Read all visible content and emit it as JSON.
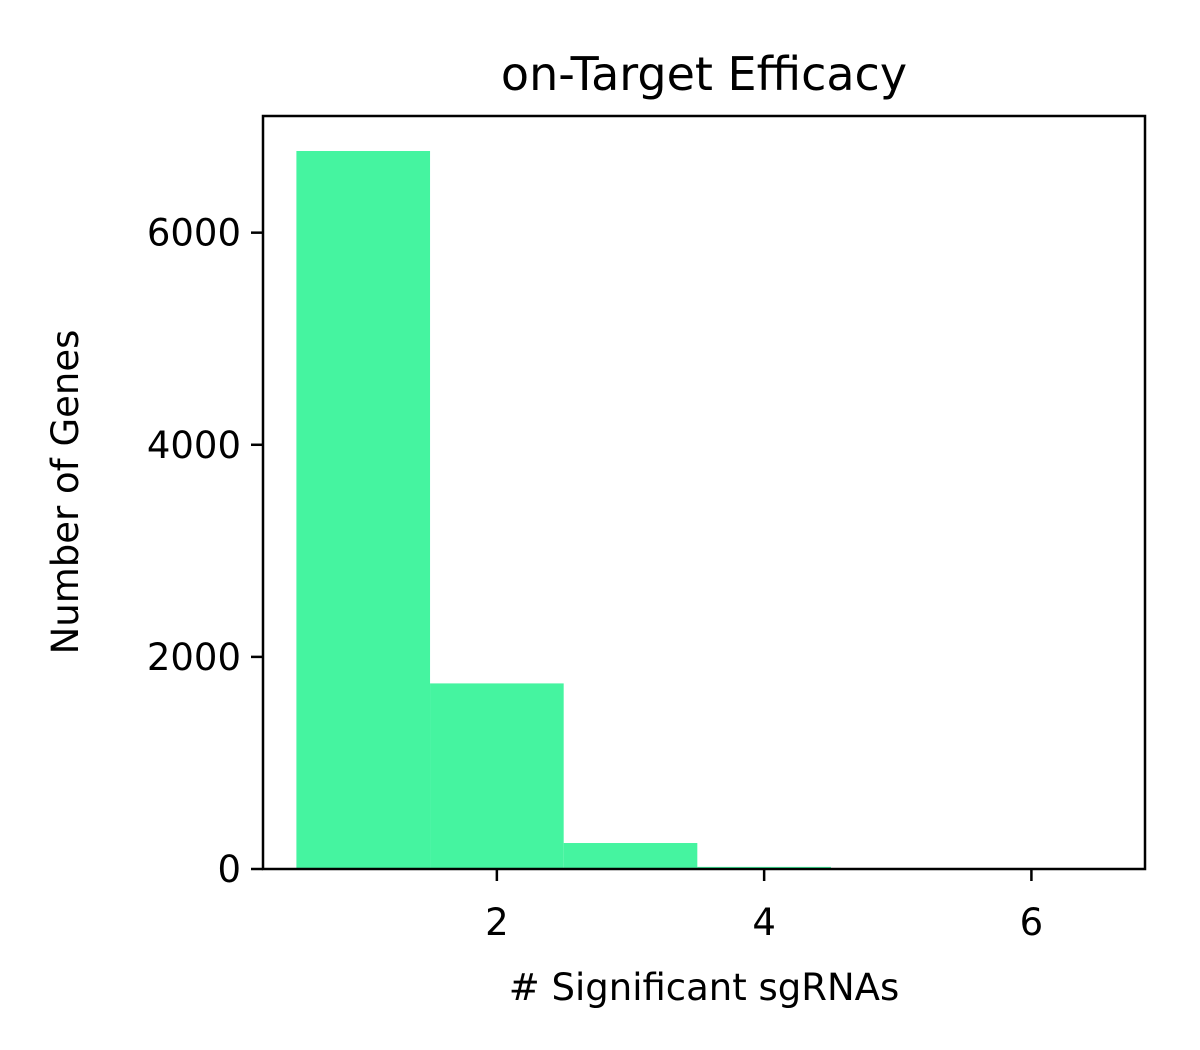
{
  "chart_data": {
    "type": "bar",
    "title": "on-Target Efficacy",
    "xlabel": "# Significant sgRNAs",
    "ylabel": "Number of Genes",
    "xlim": [
      0.25,
      6.85
    ],
    "ylim": [
      0,
      7100
    ],
    "xticks": [
      2,
      4,
      6
    ],
    "xtick_labels": [
      "2",
      "4",
      "6"
    ],
    "yticks": [
      0,
      2000,
      4000,
      6000
    ],
    "ytick_labels": [
      "0",
      "2000",
      "4000",
      "6000"
    ],
    "bins": [
      {
        "x0": 0.5,
        "x1": 1.5,
        "value": 6770
      },
      {
        "x0": 1.5,
        "x1": 2.5,
        "value": 1750
      },
      {
        "x0": 2.5,
        "x1": 3.5,
        "value": 245
      },
      {
        "x0": 3.5,
        "x1": 4.5,
        "value": 20
      },
      {
        "x0": 4.5,
        "x1": 5.5,
        "value": 2
      },
      {
        "x0": 5.5,
        "x1": 6.5,
        "value": 1
      }
    ],
    "bar_color": "#45f4a0",
    "grid": false,
    "legend": "none"
  }
}
